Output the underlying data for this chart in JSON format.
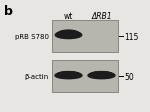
{
  "fig_label": "b",
  "header_wt": "wt",
  "header_delta": "ΔRB1",
  "panel1_label": "pRB S780",
  "panel2_label": "β-actin",
  "marker1": "115",
  "marker2": "50",
  "band_color": "#1c1c1c",
  "panel_bg": "#b8b4ae",
  "panel_border": "#888880",
  "fig_bg": "#e8e6e2"
}
